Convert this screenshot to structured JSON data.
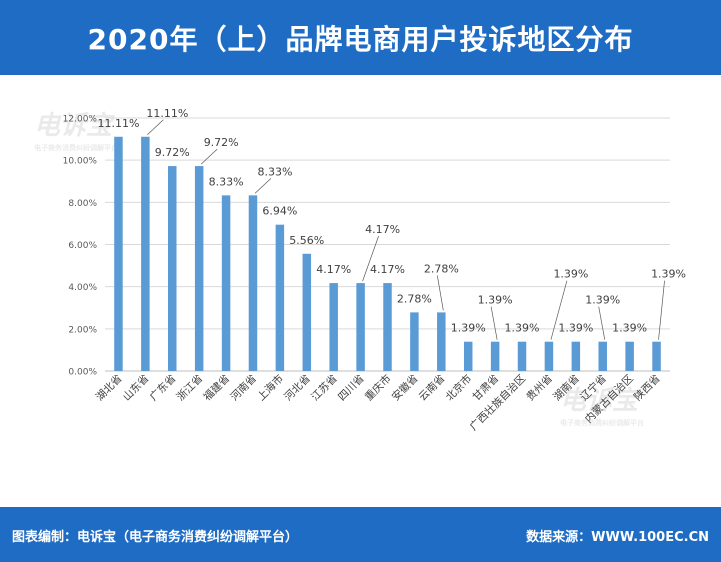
{
  "title": "2020年（上）品牌电商用户投诉地区分布",
  "footer": {
    "left": "图表编制：电诉宝（电子商务消费纠纷调解平台）",
    "right": "数据来源：WWW.100EC.CN"
  },
  "watermark": {
    "main": "电诉宝",
    "sub": "电子商务消费纠纷调解平台"
  },
  "colors": {
    "header": "#1f6cc4",
    "bar": "#5b9bd5"
  },
  "chart_data": {
    "type": "bar",
    "categories": [
      "湖北省",
      "山东省",
      "广东省",
      "浙江省",
      "福建省",
      "河南省",
      "上海市",
      "河北省",
      "江苏省",
      "四川省",
      "重庆市",
      "安徽省",
      "云南省",
      "北京市",
      "甘肃省",
      "广西壮族自治区",
      "贵州省",
      "湖南省",
      "辽宁省",
      "内蒙古自治区",
      "陕西省"
    ],
    "values": [
      11.11,
      11.11,
      9.72,
      9.72,
      8.33,
      8.33,
      6.94,
      5.56,
      4.17,
      4.17,
      4.17,
      2.78,
      2.78,
      1.39,
      1.39,
      1.39,
      1.39,
      1.39,
      1.39,
      1.39,
      1.39
    ],
    "data_labels": [
      "11.11%",
      "11.11%",
      "9.72%",
      "9.72%",
      "8.33%",
      "8.33%",
      "6.94%",
      "5.56%",
      "4.17%",
      "4.17%",
      "4.17%",
      "2.78%",
      "2.78%",
      "1.39%",
      "1.39%",
      "1.39%",
      "1.39%",
      "1.39%",
      "1.39%",
      "1.39%",
      "1.39%"
    ],
    "ylim": [
      0,
      12
    ],
    "yticks": [
      "0.00%",
      "2.00%",
      "4.00%",
      "6.00%",
      "8.00%",
      "10.00%",
      "12.00%"
    ],
    "grid": true
  }
}
